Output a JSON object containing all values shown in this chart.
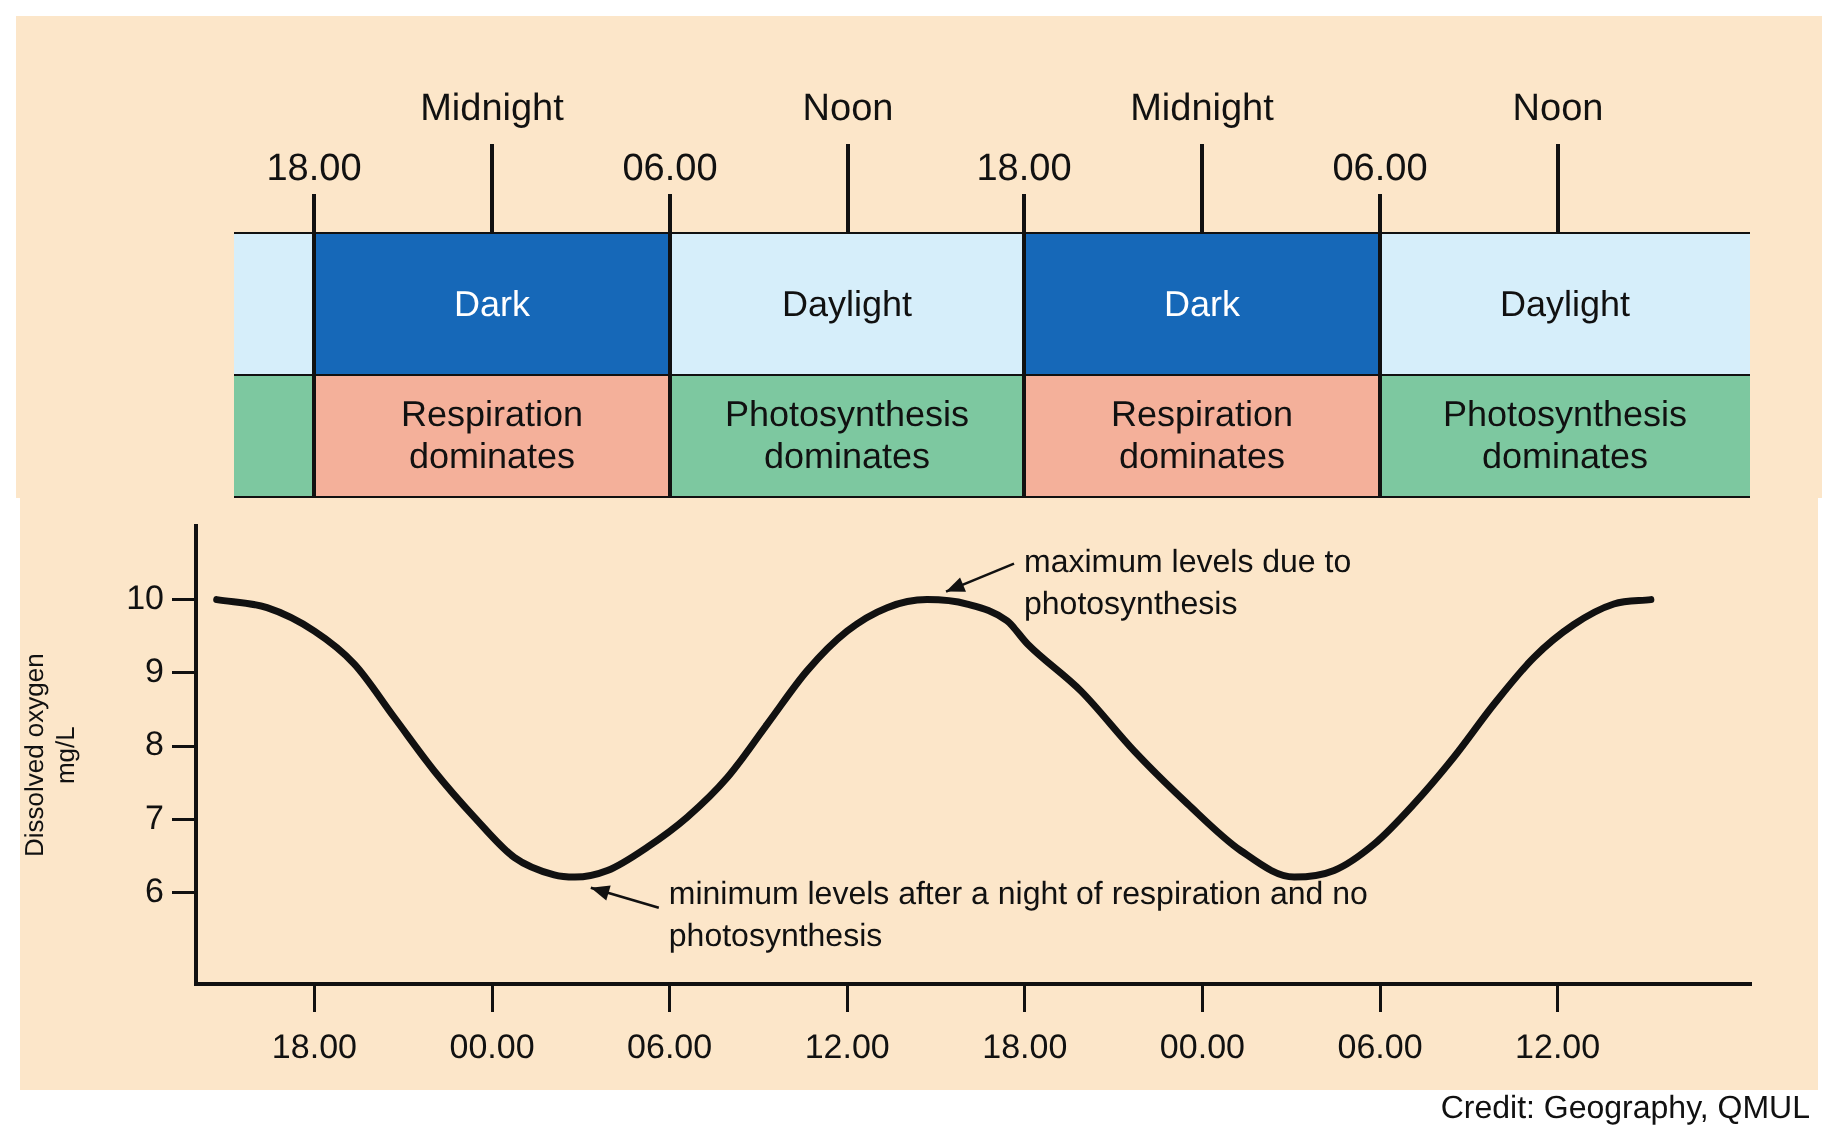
{
  "chart_data": [
    {
      "type": "other",
      "annotations": [
        "Midnight",
        "Noon",
        "Midnight",
        "Noon",
        "18.00",
        "06.00",
        "18.00",
        "06.00",
        "Dark",
        "Daylight",
        "Dark",
        "Daylight",
        "Respiration dominates",
        "Photosynthesis dominates",
        "Respiration dominates",
        "Photosynthesis dominates"
      ]
    },
    {
      "type": "line",
      "ylabel": "Dissolved oxygen mg/L",
      "xlim": [
        "2000-01-01T14:00",
        "2000-01-03T18:30"
      ],
      "ylim": [
        4.75,
        11
      ],
      "xticks": [
        {
          "value": "2000-01-01T18:00",
          "label": "18.00"
        },
        {
          "value": "2000-01-02T00:00",
          "label": "00.00"
        },
        {
          "value": "2000-01-02T06:00",
          "label": "06.00"
        },
        {
          "value": "2000-01-02T12:00",
          "label": "12.00"
        },
        {
          "value": "2000-01-02T18:00",
          "label": "18.00"
        },
        {
          "value": "2000-01-03T00:00",
          "label": "00.00"
        },
        {
          "value": "2000-01-03T06:00",
          "label": "06.00"
        },
        {
          "value": "2000-01-03T12:00",
          "label": "12.00"
        }
      ],
      "yticks": [
        6,
        7,
        8,
        9,
        10
      ],
      "series": [
        {
          "color": "#111111",
          "x": [
            "2000-01-01T14:42",
            "2000-01-01T16:24",
            "2000-01-01T18:00",
            "2000-01-01T19:21",
            "2000-01-01T20:42",
            "2000-01-01T22:03",
            "2000-01-01T23:24",
            "2000-01-02T00:45",
            "2000-01-02T02:06",
            "2000-01-02T02:48",
            "2000-01-02T03:54",
            "2000-01-02T05:15",
            "2000-01-02T06:36",
            "2000-01-02T07:57",
            "2000-01-02T09:18",
            "2000-01-02T10:39",
            "2000-01-02T12:00",
            "2000-01-02T13:21",
            "2000-01-02T14:42",
            "2000-01-02T16:03",
            "2000-01-02T17:24",
            "2000-01-02T18:06",
            "2000-01-02T19:54",
            "2000-01-02T21:42",
            "2000-01-02T23:30",
            "2000-01-03T01:18",
            "2000-01-03T03:06",
            "2000-01-03T04:27",
            "2000-01-03T05:48",
            "2000-01-03T07:09",
            "2000-01-03T08:30",
            "2000-01-03T09:51",
            "2000-01-03T11:12",
            "2000-01-03T12:33",
            "2000-01-03T13:54",
            "2000-01-03T15:09"
          ],
          "values": [
            10.0,
            9.89,
            9.57,
            9.12,
            8.39,
            7.66,
            7.03,
            6.48,
            6.24,
            6.21,
            6.3,
            6.62,
            7.03,
            7.57,
            8.3,
            9.03,
            9.57,
            9.89,
            10.0,
            9.94,
            9.71,
            9.39,
            8.75,
            7.93,
            7.21,
            6.57,
            6.21,
            6.3,
            6.66,
            7.21,
            7.85,
            8.57,
            9.21,
            9.66,
            9.94,
            10.0
          ]
        }
      ],
      "annotations": [
        {
          "text": "maximum levels due to photosynthesis",
          "x": "2000-01-02T15:00",
          "y": 10
        },
        {
          "text": "minimum levels after a night of respiration and no photosynthesis",
          "x": "2000-01-02T03:00",
          "y": 6.2
        },
        "Credit: Geography, QMUL"
      ],
      "legend": false,
      "grid": false,
      "marker": "none",
      "line_style": "solid"
    }
  ]
}
